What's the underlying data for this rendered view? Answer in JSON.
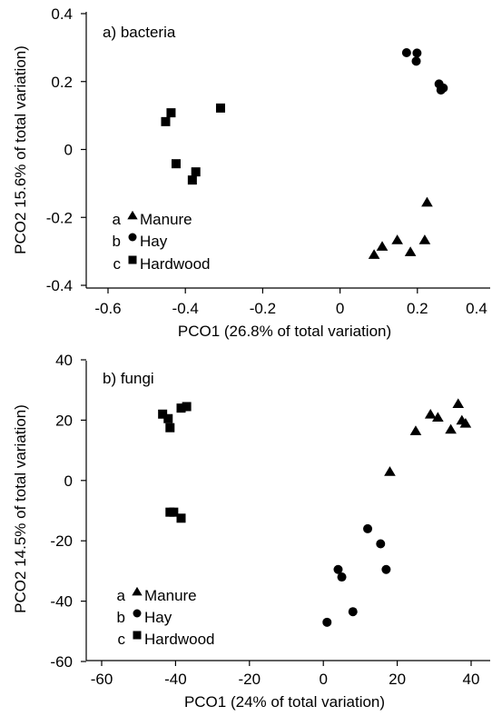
{
  "chart_data": [
    {
      "type": "scatter",
      "title": "a) bacteria",
      "xlabel": "PCO1 (26.8% of total variation)",
      "ylabel": "PCO2 15.6% of total variation)",
      "xlim": [
        -0.65,
        0.4
      ],
      "ylim": [
        -0.4,
        0.4
      ],
      "xticks": [
        -0.6,
        -0.4,
        -0.2,
        0,
        0.2,
        0.4
      ],
      "xtick_labels": [
        "-0.6",
        "-0.4",
        "-0.2",
        "0",
        "0.2",
        "0.4"
      ],
      "yticks": [
        -0.4,
        -0.2,
        0,
        0.2,
        0.4
      ],
      "ytick_labels": [
        "-0.4",
        "-0.2",
        "0",
        "0.2",
        "0.4"
      ],
      "grid": false,
      "legend_position": "bottom-left",
      "series": [
        {
          "name": "Manure",
          "letter": "a",
          "marker": "triangle",
          "x": [
            0.088,
            0.109,
            0.148,
            0.182,
            0.219,
            0.225
          ],
          "y": [
            -0.309,
            -0.285,
            -0.266,
            -0.301,
            -0.266,
            -0.155
          ]
        },
        {
          "name": "Hay",
          "letter": "b",
          "marker": "circle",
          "x": [
            0.172,
            0.199,
            0.197,
            0.256,
            0.261,
            0.267
          ],
          "y": [
            0.285,
            0.284,
            0.26,
            0.193,
            0.175,
            0.181
          ]
        },
        {
          "name": "Hardwood",
          "letter": "c",
          "marker": "square",
          "x": [
            -0.451,
            -0.437,
            -0.309,
            -0.424,
            -0.373,
            -0.382
          ],
          "y": [
            0.082,
            0.108,
            0.122,
            -0.042,
            -0.066,
            -0.09
          ]
        }
      ]
    },
    {
      "type": "scatter",
      "title": "b) fungi",
      "xlabel": "PCO1 (24% of total variation)",
      "ylabel": "PCO2 14.5% of total variation)",
      "xlim": [
        -63,
        42
      ],
      "ylim": [
        -60,
        40
      ],
      "xticks": [
        -60,
        -40,
        -20,
        0,
        20,
        40
      ],
      "xtick_labels": [
        "-60",
        "-40",
        "-20",
        "0",
        "20",
        "40"
      ],
      "yticks": [
        -60,
        -40,
        -20,
        0,
        20,
        40
      ],
      "ytick_labels": [
        "-60",
        "-40",
        "-20",
        "0",
        "20",
        "40"
      ],
      "grid": false,
      "legend_position": "bottom-left",
      "series": [
        {
          "name": "Manure",
          "letter": "a",
          "marker": "triangle",
          "x": [
            18,
            25,
            29,
            31,
            34.5,
            36.5,
            37.5,
            38.5
          ],
          "y": [
            3,
            16.5,
            22,
            21,
            17,
            25.5,
            20,
            19
          ]
        },
        {
          "name": "Hay",
          "letter": "b",
          "marker": "circle",
          "x": [
            1,
            4,
            5,
            8,
            12,
            15.5,
            17
          ],
          "y": [
            -47,
            -29.5,
            -32,
            -43.5,
            -16,
            -21,
            -29.5
          ]
        },
        {
          "name": "Hardwood",
          "letter": "c",
          "marker": "square",
          "x": [
            -43.5,
            -42,
            -41.5,
            -41.5,
            -40.5,
            -38.5,
            -38.5,
            -37
          ],
          "y": [
            22,
            20.5,
            17.5,
            -10.5,
            -10.5,
            24,
            -12.5,
            24.5
          ]
        }
      ]
    }
  ]
}
